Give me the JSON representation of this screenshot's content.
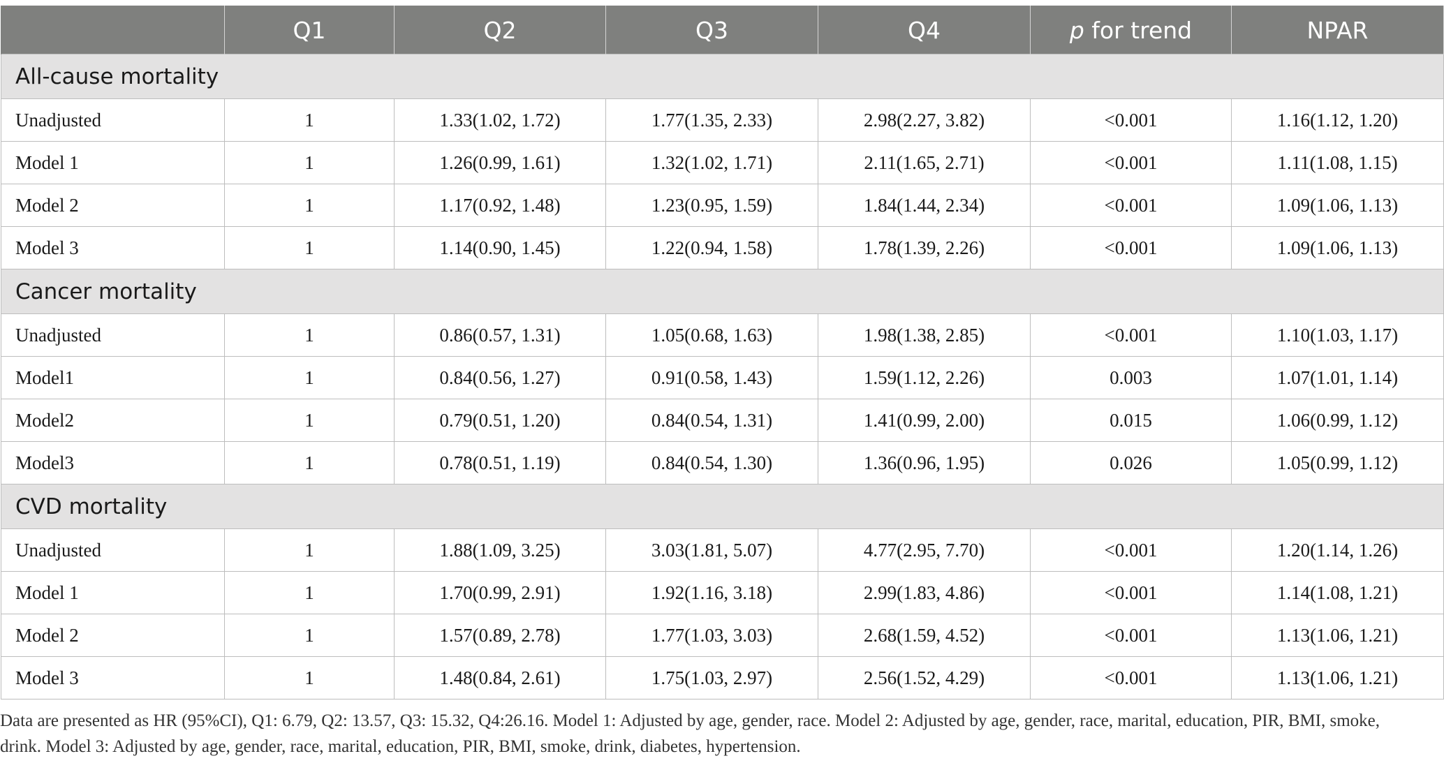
{
  "table": {
    "columns": [
      "",
      "Q1",
      "Q2",
      "Q3",
      "Q4",
      "p for trend",
      "NPAR"
    ],
    "p_trend_italic": "p",
    "p_trend_rest": " for trend",
    "sections": [
      {
        "title": "All-cause mortality",
        "rows": [
          [
            "Unadjusted",
            "1",
            "1.33(1.02, 1.72)",
            "1.77(1.35, 2.33)",
            "2.98(2.27, 3.82)",
            "<0.001",
            "1.16(1.12, 1.20)"
          ],
          [
            "Model 1",
            "1",
            "1.26(0.99, 1.61)",
            "1.32(1.02, 1.71)",
            "2.11(1.65, 2.71)",
            "<0.001",
            "1.11(1.08, 1.15)"
          ],
          [
            "Model 2",
            "1",
            "1.17(0.92, 1.48)",
            "1.23(0.95, 1.59)",
            "1.84(1.44, 2.34)",
            "<0.001",
            "1.09(1.06, 1.13)"
          ],
          [
            "Model 3",
            "1",
            "1.14(0.90, 1.45)",
            "1.22(0.94, 1.58)",
            "1.78(1.39, 2.26)",
            "<0.001",
            "1.09(1.06, 1.13)"
          ]
        ]
      },
      {
        "title": "Cancer mortality",
        "rows": [
          [
            "Unadjusted",
            "1",
            "0.86(0.57, 1.31)",
            "1.05(0.68, 1.63)",
            "1.98(1.38, 2.85)",
            "<0.001",
            "1.10(1.03, 1.17)"
          ],
          [
            "Model1",
            "1",
            "0.84(0.56, 1.27)",
            "0.91(0.58, 1.43)",
            "1.59(1.12, 2.26)",
            "0.003",
            "1.07(1.01, 1.14)"
          ],
          [
            "Model2",
            "1",
            "0.79(0.51, 1.20)",
            "0.84(0.54, 1.31)",
            "1.41(0.99, 2.00)",
            "0.015",
            "1.06(0.99, 1.12)"
          ],
          [
            "Model3",
            "1",
            "0.78(0.51, 1.19)",
            "0.84(0.54, 1.30)",
            "1.36(0.96, 1.95)",
            "0.026",
            "1.05(0.99, 1.12)"
          ]
        ]
      },
      {
        "title": "CVD mortality",
        "rows": [
          [
            "Unadjusted",
            "1",
            "1.88(1.09, 3.25)",
            "3.03(1.81, 5.07)",
            "4.77(2.95, 7.70)",
            "<0.001",
            "1.20(1.14, 1.26)"
          ],
          [
            "Model 1",
            "1",
            "1.70(0.99, 2.91)",
            "1.92(1.16, 3.18)",
            "2.99(1.83, 4.86)",
            "<0.001",
            "1.14(1.08, 1.21)"
          ],
          [
            "Model 2",
            "1",
            "1.57(0.89, 2.78)",
            "1.77(1.03, 3.03)",
            "2.68(1.59, 4.52)",
            "<0.001",
            "1.13(1.06, 1.21)"
          ],
          [
            "Model 3",
            "1",
            "1.48(0.84, 2.61)",
            "1.75(1.03, 2.97)",
            "2.56(1.52, 4.29)",
            "<0.001",
            "1.13(1.06, 1.21)"
          ]
        ]
      }
    ]
  },
  "footnote": "Data are presented as HR (95%CI), Q1: 6.79, Q2: 13.57, Q3: 15.32, Q4:26.16. Model 1: Adjusted by age, gender, race. Model 2: Adjusted by age, gender, race, marital, education, PIR, BMI, smoke, drink. Model 3: Adjusted by age, gender, race, marital, education, PIR, BMI, smoke, drink, diabetes, hypertension."
}
